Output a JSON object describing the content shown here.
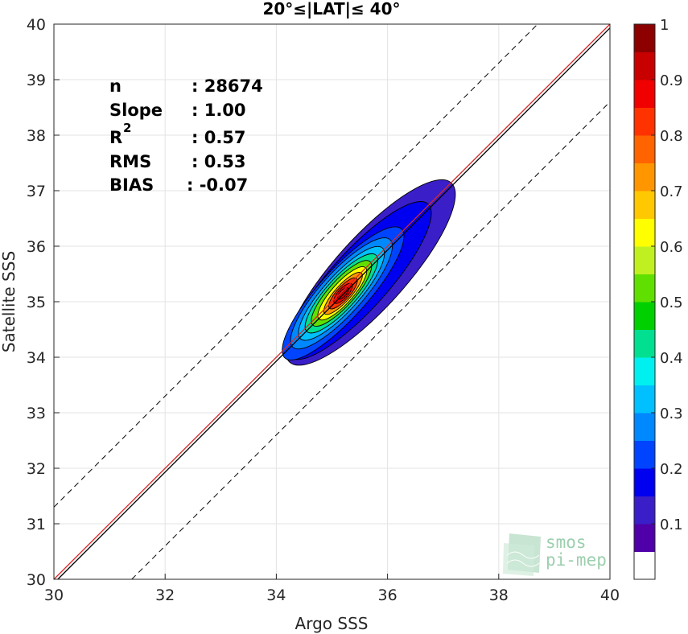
{
  "chart_data": {
    "type": "contour-density-scatter",
    "title": "20°≤|LAT|≤ 40°",
    "xlabel": "Argo SSS",
    "ylabel": "Satellite SSS",
    "xlim": [
      30,
      40
    ],
    "ylim": [
      30,
      40
    ],
    "xticks": [
      "30",
      "32",
      "34",
      "36",
      "38",
      "40"
    ],
    "yticks": [
      "30",
      "31",
      "32",
      "33",
      "34",
      "35",
      "36",
      "37",
      "38",
      "39",
      "40"
    ],
    "grid": true,
    "stats": [
      {
        "label": "n",
        "value": ": 28674"
      },
      {
        "label": "Slope",
        "value": ": 1.00"
      },
      {
        "label": "R",
        "value": ": 0.57"
      },
      {
        "label": "RMS",
        "value": ": 0.53"
      },
      {
        "label": "BIAS",
        "value": ": -0.07"
      }
    ],
    "stat_superscript": "2",
    "one_to_one_line": {
      "slope": 1,
      "intercept": 0,
      "color": "#000000"
    },
    "fit_line": {
      "slope": 1.0,
      "intercept": -0.07,
      "color": "#d62728"
    },
    "envelope_lines": [
      {
        "slope": 1,
        "intercept": 1.3,
        "style": "dashed"
      },
      {
        "slope": 1,
        "intercept": -1.4,
        "style": "dashed"
      }
    ],
    "density_peak": {
      "x": 35.2,
      "y": 35.15
    },
    "density_levels": [
      0.05,
      0.1,
      0.2,
      0.3,
      0.4,
      0.5,
      0.6,
      0.7,
      0.8,
      0.9
    ],
    "colorbar": {
      "ticks": [
        "0.1",
        "0.2",
        "0.3",
        "0.4",
        "0.5",
        "0.6",
        "0.7",
        "0.8",
        "0.9",
        "1"
      ],
      "tick_values": [
        0.1,
        0.2,
        0.3,
        0.4,
        0.5,
        0.6,
        0.7,
        0.8,
        0.9,
        1.0
      ],
      "colors": [
        "#ffffff",
        "#5000a8",
        "#3a1ec8",
        "#0000f0",
        "#0044ff",
        "#0088ff",
        "#00c0ff",
        "#00f0f0",
        "#00e090",
        "#00d000",
        "#60e000",
        "#c0f020",
        "#ffff00",
        "#ffc800",
        "#ff9600",
        "#ff6400",
        "#ff3200",
        "#f00000",
        "#c80000",
        "#8c0000"
      ]
    }
  },
  "logo": {
    "line1": "smos",
    "line2": "pi-mep"
  }
}
